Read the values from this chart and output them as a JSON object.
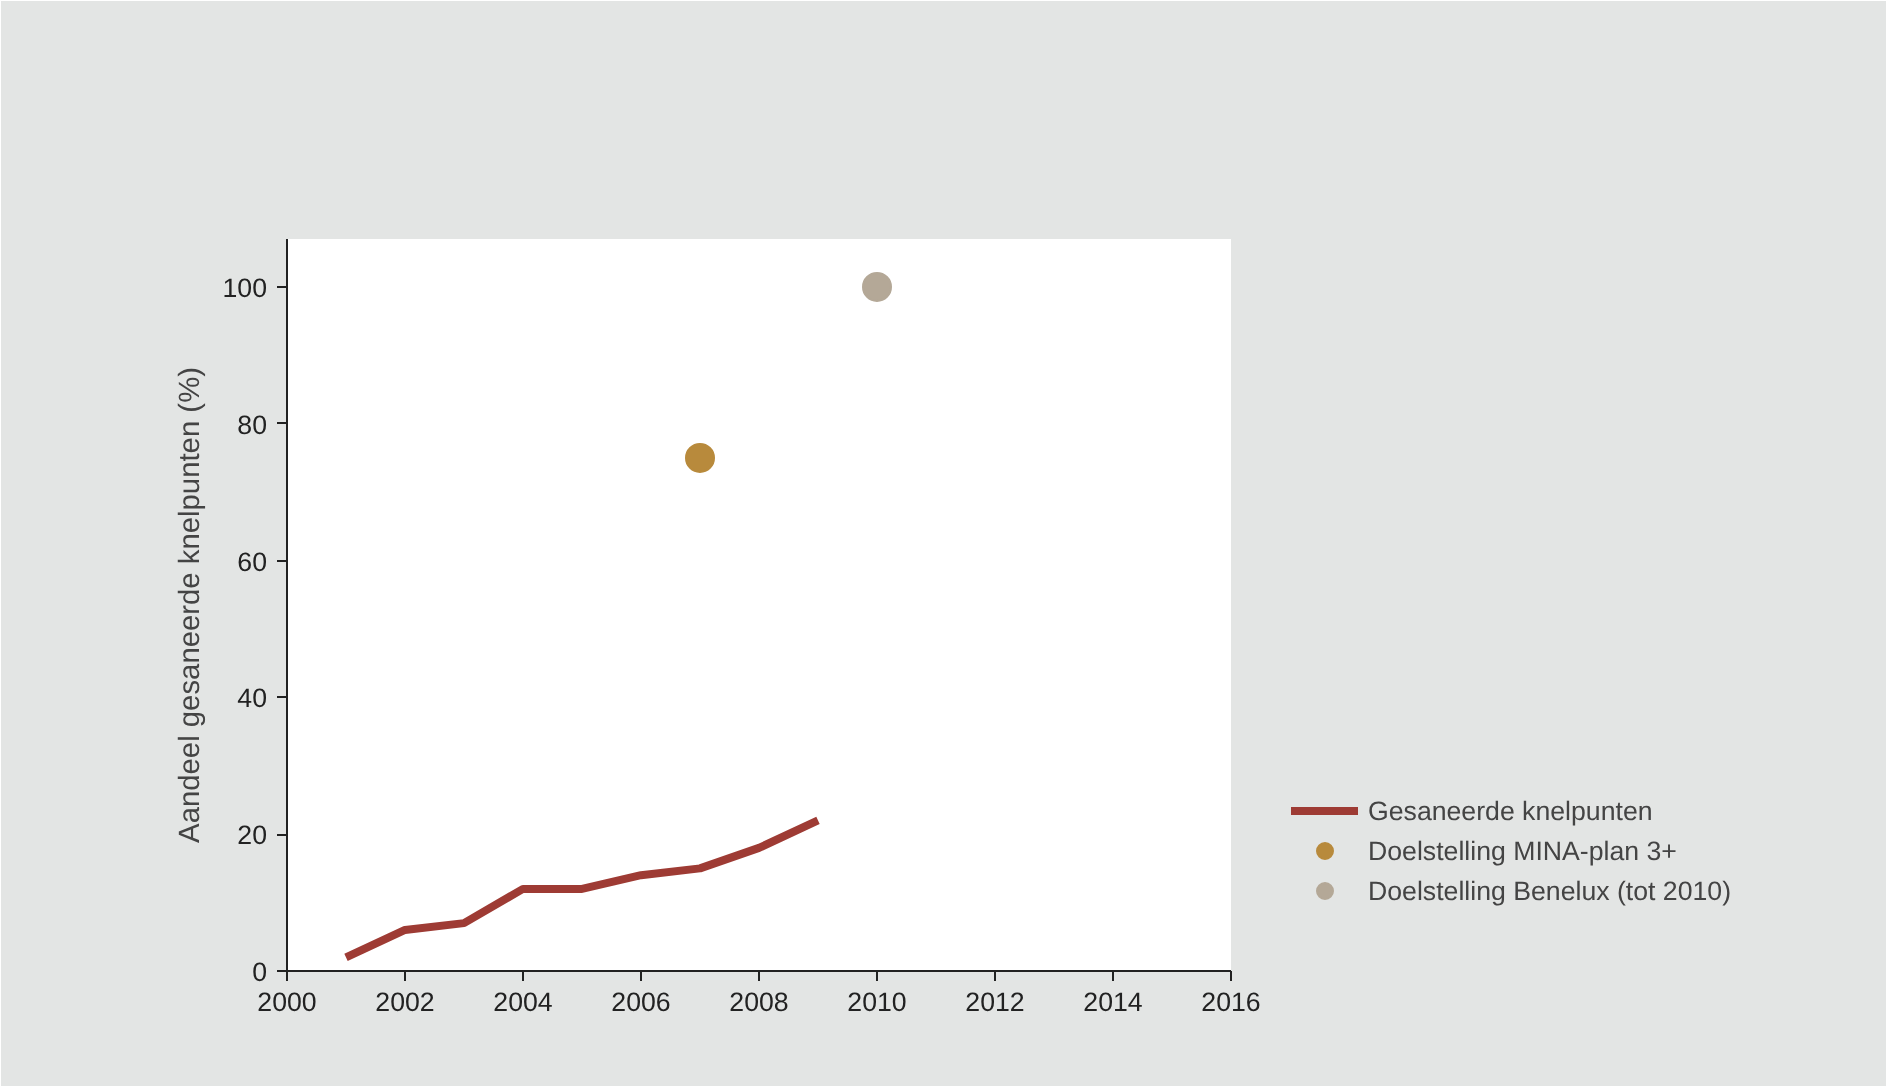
{
  "chart_data": {
    "type": "line",
    "ylabel": "Aandeel gesaneerde knelpunten (%)",
    "xlim": [
      2000,
      2016
    ],
    "xticks": [
      2000,
      2002,
      2004,
      2006,
      2008,
      2010,
      2012,
      2014,
      2016
    ],
    "ylim": [
      0,
      107
    ],
    "yticks": [
      0,
      20,
      40,
      60,
      80,
      100
    ],
    "grid": false,
    "legend": "bottom right",
    "series": [
      {
        "name": "Gesaneerde knelpunten",
        "color": "#9e3b34",
        "x": [
          2001,
          2002,
          2003,
          2004,
          2005,
          2006,
          2007,
          2008,
          2009
        ],
        "values": [
          2,
          6,
          7,
          12,
          12,
          14,
          15,
          18,
          22
        ]
      },
      {
        "name": "Doelstelling MINA-plan 3+",
        "color": "#b88a3c",
        "type": "scatter",
        "x": [
          2007
        ],
        "values": [
          75
        ]
      },
      {
        "name": "Doelstelling Benelux (tot 2010)",
        "color": "#b4a897",
        "type": "scatter",
        "x": [
          2010
        ],
        "values": [
          100
        ]
      }
    ]
  }
}
